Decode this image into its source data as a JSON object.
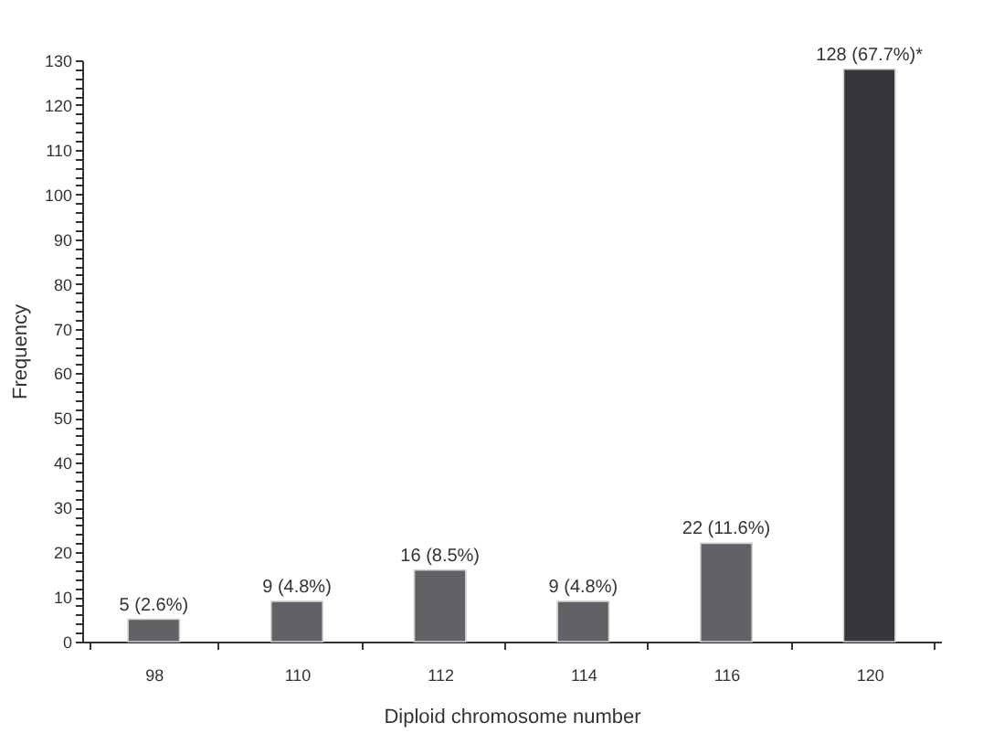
{
  "chart_data": {
    "type": "bar",
    "xlabel": "Diploid chromosome number",
    "ylabel": "Frequency",
    "categories": [
      "98",
      "110",
      "112",
      "114",
      "116",
      "120"
    ],
    "values": [
      5,
      9,
      16,
      9,
      22,
      128
    ],
    "colors": [
      "#616266",
      "#616266",
      "#616266",
      "#616266",
      "#616266",
      "#35373b"
    ],
    "value_labels": [
      "5 (2.6%)",
      "9 (4.8%)",
      "16 (8.5%)",
      "9 (4.8%)",
      "22 (11.6%)",
      "128 (67.7%)*"
    ],
    "ylim": [
      0,
      130
    ],
    "yticks": [
      0,
      {
        "value": 2,
        "label": null
      },
      {
        "value": 4,
        "label": null
      },
      {
        "value": 6,
        "label": null
      },
      {
        "value": 8,
        "label": null
      },
      10,
      {
        "value": 12,
        "label": null
      },
      {
        "value": 14,
        "label": null
      },
      {
        "value": 16,
        "label": null
      },
      {
        "value": 18,
        "label": null
      },
      20,
      {
        "value": 22,
        "label": null
      },
      {
        "value": 24,
        "label": null
      },
      {
        "value": 26,
        "label": null
      },
      {
        "value": 28,
        "label": null
      },
      30,
      {
        "value": 32,
        "label": null
      },
      {
        "value": 34,
        "label": null
      },
      {
        "value": 36,
        "label": null
      },
      {
        "value": 38,
        "label": null
      },
      40,
      {
        "value": 42,
        "label": null
      },
      {
        "value": 44,
        "label": null
      },
      {
        "value": 46,
        "label": null
      },
      {
        "value": 48,
        "label": null
      },
      50,
      {
        "value": 52,
        "label": null
      },
      {
        "value": 54,
        "label": null
      },
      {
        "value": 56,
        "label": null
      },
      {
        "value": 58,
        "label": null
      },
      60,
      {
        "value": 62,
        "label": null
      },
      {
        "value": 64,
        "label": null
      },
      {
        "value": 66,
        "label": null
      },
      {
        "value": 68,
        "label": null
      },
      70,
      {
        "value": 72,
        "label": null
      },
      {
        "value": 74,
        "label": null
      },
      {
        "value": 76,
        "label": null
      },
      {
        "value": 78,
        "label": null
      },
      80,
      {
        "value": 82,
        "label": null
      },
      {
        "value": 84,
        "label": null
      },
      {
        "value": 86,
        "label": null
      },
      {
        "value": 88,
        "label": null
      },
      90,
      {
        "value": 92,
        "label": null
      },
      {
        "value": 94,
        "label": null
      },
      {
        "value": 96,
        "label": null
      },
      {
        "value": 98,
        "label": null
      },
      100,
      {
        "value": 102,
        "label": null
      },
      {
        "value": 104,
        "label": null
      },
      {
        "value": 106,
        "label": null
      },
      {
        "value": 108,
        "label": null
      },
      110,
      {
        "value": 112,
        "label": null
      },
      {
        "value": 114,
        "label": null
      },
      {
        "value": 116,
        "label": null
      },
      {
        "value": 118,
        "label": null
      },
      120,
      {
        "value": 122,
        "label": null
      },
      {
        "value": 124,
        "label": null
      },
      {
        "value": 126,
        "label": null
      },
      {
        "value": 128,
        "label": null
      },
      130
    ],
    "grid": false
  }
}
